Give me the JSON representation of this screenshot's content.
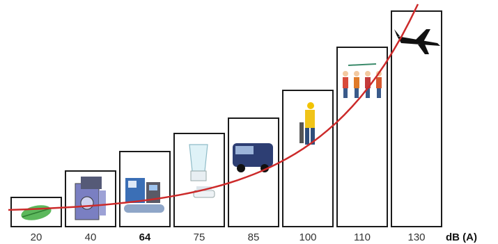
{
  "chart_data": {
    "type": "bar",
    "categories": [
      "20",
      "40",
      "64",
      "75",
      "85",
      "100",
      "110",
      "130"
    ],
    "values": [
      20,
      40,
      64,
      75,
      85,
      100,
      110,
      130
    ],
    "emphasized_category": "64",
    "unit_label": "dB (A)",
    "ylim": [
      0,
      140
    ],
    "grid": false,
    "curve": {
      "type": "exponential",
      "color": "#cc2a2a"
    },
    "icons": [
      "leaf-icon",
      "washing-machine-icon",
      "office-machine-icon",
      "blender-icon",
      "van-icon",
      "jackhammer-worker-icon",
      "construction-crowd-icon",
      "airplane-icon"
    ],
    "colors": {
      "bar_stroke": "#1a1a1a",
      "curve": "#cc2a2a",
      "text": "#333333"
    }
  }
}
